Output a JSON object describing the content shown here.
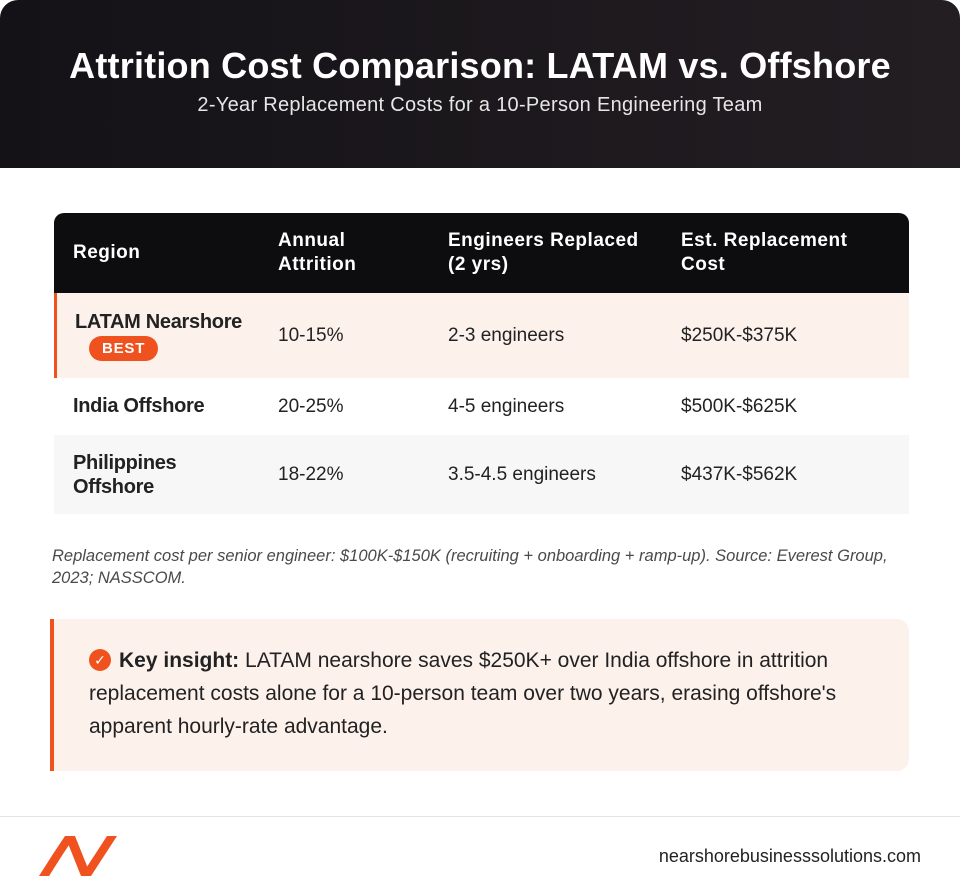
{
  "header": {
    "title": "Attrition Cost Comparison: LATAM vs. Offshore",
    "subtitle": "2-Year Replacement Costs for a 10-Person Engineering Team"
  },
  "table": {
    "columns": [
      "Region",
      "Annual Attrition",
      "Engineers Replaced (2 yrs)",
      "Est. Replacement Cost"
    ],
    "rows": [
      {
        "region": "LATAM Nearshore",
        "badge": "BEST",
        "attrition": "10-15%",
        "replaced": "2-3 engineers",
        "cost": "$250K-$375K"
      },
      {
        "region": "India Offshore",
        "attrition": "20-25%",
        "replaced": "4-5 engineers",
        "cost": "$500K-$625K"
      },
      {
        "region": "Philippines Offshore",
        "attrition": "18-22%",
        "replaced": "3.5-4.5 engineers",
        "cost": "$437K-$562K"
      }
    ]
  },
  "note": "Replacement cost per senior engineer: $100K-$150K (recruiting + onboarding + ramp-up). Source: Everest Group, 2023; NASSCOM.",
  "insight": {
    "icon": "check-circle-icon",
    "label": "Key insight:",
    "text": " LATAM nearshore saves $250K+ over India offshore in attrition replacement costs alone for a 10-person team over two years, erasing offshore's apparent hourly-rate advantage."
  },
  "footer": {
    "logo": "nearshore-logo-icon",
    "website": "nearshorebusinesssolutions.com"
  },
  "colors": {
    "accent": "#f0521f",
    "header_bg": "#141217",
    "highlight_row": "#fdf1ec"
  }
}
